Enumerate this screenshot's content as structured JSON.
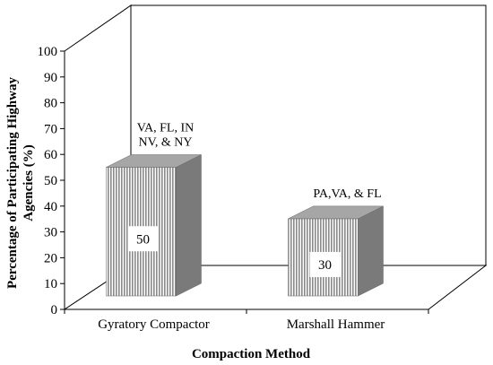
{
  "chart_data": {
    "type": "bar",
    "title": "",
    "xlabel": "Compaction Method",
    "ylabel": "Percentage of Participating Highway Agencies (%)",
    "ylabel_lines": [
      "Percentage of Participating Highway",
      "Agencies (%)"
    ],
    "ylim": [
      0,
      100
    ],
    "yticks": [
      0,
      10,
      20,
      30,
      40,
      50,
      60,
      70,
      80,
      90,
      100
    ],
    "categories": [
      "Gyratory Compactor",
      "Marshall Hammer"
    ],
    "values": [
      50,
      30
    ],
    "data_labels": [
      "50",
      "30"
    ],
    "annotations": [
      [
        "VA, FL, IN",
        "NV, & NY"
      ],
      [
        "PA,VA, & FL"
      ]
    ],
    "grid": false,
    "legend": "none",
    "style": "3d"
  }
}
